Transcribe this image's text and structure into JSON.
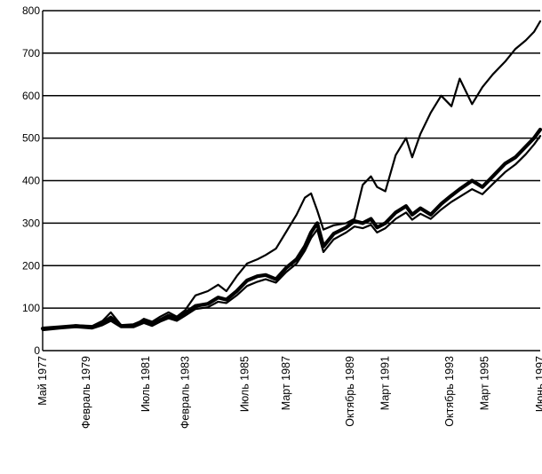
{
  "chart_data": {
    "type": "line",
    "title": "",
    "xlabel": "",
    "ylabel": "",
    "ylim": [
      0,
      800
    ],
    "yticks": [
      0,
      100,
      200,
      300,
      400,
      500,
      600,
      700,
      800
    ],
    "ytick_labels": [
      "0",
      "100",
      "200",
      "300",
      "400",
      "500",
      "600",
      "700",
      "800"
    ],
    "grid": true,
    "legend": "none",
    "x_range": [
      "1977-05",
      "1997-06"
    ],
    "x_tick_labels": [
      {
        "label": "Май 1977",
        "date": "1977-05"
      },
      {
        "label": "Февраль 1979",
        "date": "1979-02"
      },
      {
        "label": "Июль 1981",
        "date": "1981-07"
      },
      {
        "label": "Февраль 1983",
        "date": "1983-02"
      },
      {
        "label": "Июль 1985",
        "date": "1985-07"
      },
      {
        "label": "Март 1987",
        "date": "1987-03"
      },
      {
        "label": "Октябрь 1989",
        "date": "1989-10"
      },
      {
        "label": "Март 1991",
        "date": "1991-03"
      },
      {
        "label": "Октябрь 1993",
        "date": "1993-10"
      },
      {
        "label": "Март 1995",
        "date": "1995-03"
      },
      {
        "label": "Июнь 1997",
        "date": "1997-06"
      }
    ],
    "series": [
      {
        "stroke_width": 2.2,
        "color": "#000000",
        "points": [
          [
            "1977-05",
            50
          ],
          [
            "1978-01",
            55
          ],
          [
            "1978-09",
            60
          ],
          [
            "1979-05",
            58
          ],
          [
            "1979-10",
            70
          ],
          [
            "1980-02",
            90
          ],
          [
            "1980-07",
            60
          ],
          [
            "1981-01",
            58
          ],
          [
            "1981-06",
            75
          ],
          [
            "1981-10",
            68
          ],
          [
            "1982-02",
            80
          ],
          [
            "1982-06",
            90
          ],
          [
            "1982-10",
            80
          ],
          [
            "1983-02",
            95
          ],
          [
            "1983-07",
            130
          ],
          [
            "1984-01",
            140
          ],
          [
            "1984-06",
            155
          ],
          [
            "1984-10",
            140
          ],
          [
            "1985-03",
            175
          ],
          [
            "1985-08",
            205
          ],
          [
            "1986-01",
            215
          ],
          [
            "1986-05",
            225
          ],
          [
            "1986-10",
            240
          ],
          [
            "1987-03",
            280
          ],
          [
            "1987-08",
            320
          ],
          [
            "1987-12",
            360
          ],
          [
            "1988-03",
            370
          ],
          [
            "1988-06",
            330
          ],
          [
            "1988-09",
            285
          ],
          [
            "1989-02",
            295
          ],
          [
            "1989-08",
            300
          ],
          [
            "1989-12",
            310
          ],
          [
            "1990-04",
            390
          ],
          [
            "1990-08",
            410
          ],
          [
            "1990-11",
            385
          ],
          [
            "1991-03",
            375
          ],
          [
            "1991-08",
            460
          ],
          [
            "1992-01",
            500
          ],
          [
            "1992-04",
            455
          ],
          [
            "1992-08",
            510
          ],
          [
            "1993-01",
            560
          ],
          [
            "1993-06",
            600
          ],
          [
            "1993-11",
            575
          ],
          [
            "1994-03",
            640
          ],
          [
            "1994-09",
            580
          ],
          [
            "1995-02",
            620
          ],
          [
            "1995-07",
            650
          ],
          [
            "1996-01",
            680
          ],
          [
            "1996-06",
            710
          ],
          [
            "1996-11",
            730
          ],
          [
            "1997-03",
            750
          ],
          [
            "1997-06",
            775
          ]
        ]
      },
      {
        "stroke_width": 4.2,
        "color": "#000000",
        "points": [
          [
            "1977-05",
            52
          ],
          [
            "1978-01",
            55
          ],
          [
            "1978-09",
            58
          ],
          [
            "1979-05",
            55
          ],
          [
            "1979-10",
            65
          ],
          [
            "1980-02",
            78
          ],
          [
            "1980-07",
            58
          ],
          [
            "1981-01",
            60
          ],
          [
            "1981-06",
            70
          ],
          [
            "1981-10",
            62
          ],
          [
            "1982-02",
            72
          ],
          [
            "1982-06",
            82
          ],
          [
            "1982-10",
            75
          ],
          [
            "1983-02",
            88
          ],
          [
            "1983-07",
            105
          ],
          [
            "1984-01",
            110
          ],
          [
            "1984-06",
            125
          ],
          [
            "1984-10",
            120
          ],
          [
            "1985-03",
            140
          ],
          [
            "1985-08",
            165
          ],
          [
            "1986-01",
            175
          ],
          [
            "1986-05",
            178
          ],
          [
            "1986-10",
            168
          ],
          [
            "1987-03",
            195
          ],
          [
            "1987-08",
            215
          ],
          [
            "1987-12",
            245
          ],
          [
            "1988-03",
            278
          ],
          [
            "1988-06",
            300
          ],
          [
            "1988-09",
            245
          ],
          [
            "1989-02",
            275
          ],
          [
            "1989-08",
            290
          ],
          [
            "1989-12",
            305
          ],
          [
            "1990-04",
            300
          ],
          [
            "1990-08",
            310
          ],
          [
            "1990-11",
            290
          ],
          [
            "1991-03",
            300
          ],
          [
            "1991-08",
            325
          ],
          [
            "1992-01",
            340
          ],
          [
            "1992-04",
            320
          ],
          [
            "1992-08",
            335
          ],
          [
            "1993-01",
            320
          ],
          [
            "1993-06",
            345
          ],
          [
            "1993-11",
            365
          ],
          [
            "1994-03",
            380
          ],
          [
            "1994-09",
            400
          ],
          [
            "1995-02",
            385
          ],
          [
            "1995-07",
            410
          ],
          [
            "1996-01",
            440
          ],
          [
            "1996-06",
            455
          ],
          [
            "1996-11",
            480
          ],
          [
            "1997-03",
            500
          ],
          [
            "1997-06",
            520
          ]
        ]
      },
      {
        "stroke_width": 2.2,
        "color": "#000000",
        "points": [
          [
            "1977-05",
            48
          ],
          [
            "1978-01",
            52
          ],
          [
            "1978-09",
            55
          ],
          [
            "1979-05",
            52
          ],
          [
            "1979-10",
            60
          ],
          [
            "1980-02",
            70
          ],
          [
            "1980-07",
            55
          ],
          [
            "1981-01",
            55
          ],
          [
            "1981-06",
            65
          ],
          [
            "1981-10",
            58
          ],
          [
            "1982-02",
            68
          ],
          [
            "1982-06",
            76
          ],
          [
            "1982-10",
            70
          ],
          [
            "1983-02",
            82
          ],
          [
            "1983-07",
            98
          ],
          [
            "1984-01",
            102
          ],
          [
            "1984-06",
            115
          ],
          [
            "1984-10",
            112
          ],
          [
            "1985-03",
            130
          ],
          [
            "1985-08",
            152
          ],
          [
            "1986-01",
            162
          ],
          [
            "1986-05",
            168
          ],
          [
            "1986-10",
            160
          ],
          [
            "1987-03",
            185
          ],
          [
            "1987-08",
            205
          ],
          [
            "1987-12",
            235
          ],
          [
            "1988-03",
            265
          ],
          [
            "1988-06",
            285
          ],
          [
            "1988-09",
            232
          ],
          [
            "1989-02",
            262
          ],
          [
            "1989-08",
            278
          ],
          [
            "1989-12",
            292
          ],
          [
            "1990-04",
            288
          ],
          [
            "1990-08",
            296
          ],
          [
            "1990-11",
            278
          ],
          [
            "1991-03",
            288
          ],
          [
            "1991-08",
            310
          ],
          [
            "1992-01",
            325
          ],
          [
            "1992-04",
            308
          ],
          [
            "1992-08",
            322
          ],
          [
            "1993-01",
            310
          ],
          [
            "1993-06",
            332
          ],
          [
            "1993-11",
            350
          ],
          [
            "1994-03",
            362
          ],
          [
            "1994-09",
            380
          ],
          [
            "1995-02",
            368
          ],
          [
            "1995-07",
            392
          ],
          [
            "1996-01",
            420
          ],
          [
            "1996-06",
            438
          ],
          [
            "1996-11",
            462
          ],
          [
            "1997-03",
            485
          ],
          [
            "1997-06",
            505
          ]
        ]
      }
    ]
  }
}
